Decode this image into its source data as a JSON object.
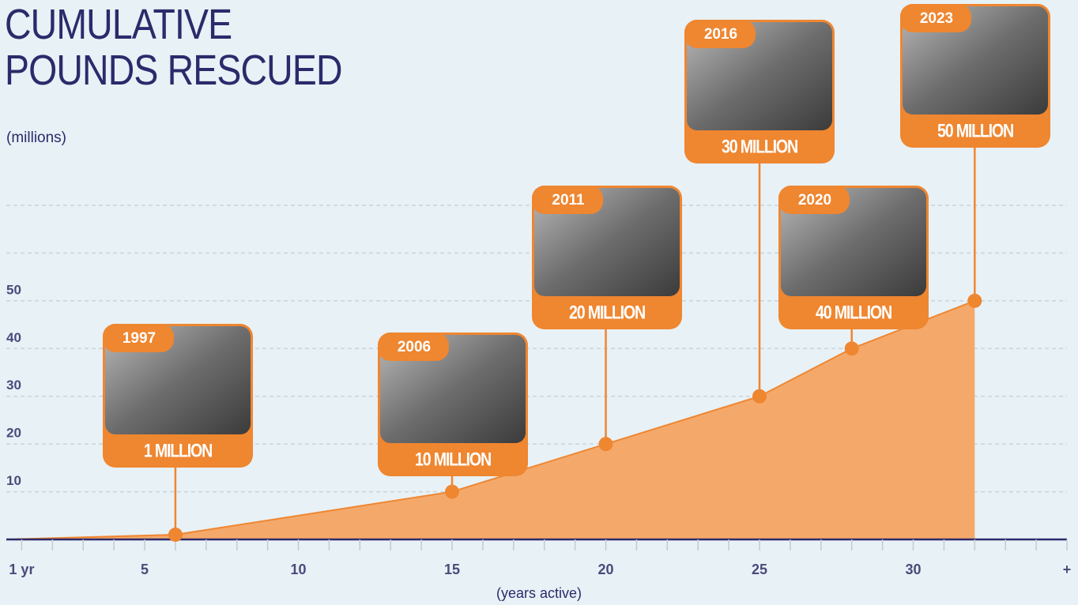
{
  "chart_data": {
    "type": "area",
    "title": "CUMULATIVE POUNDS RESCUED",
    "subtitle": "(millions)",
    "xlabel": "(years active)",
    "x": [
      6,
      15,
      20,
      25,
      28,
      32
    ],
    "values": [
      1,
      10,
      20,
      30,
      40,
      50
    ],
    "value_labels": [
      "1 MILLION",
      "10 MILLION",
      "20 MILLION",
      "30 MILLION",
      "40 MILLION",
      "50 MILLION"
    ],
    "milestone_years": [
      "1997",
      "2006",
      "2011",
      "2016",
      "2020",
      "2023"
    ],
    "color": "#ef8630",
    "fill_color": "#f4a96b",
    "xlim": [
      0.5,
      35
    ],
    "xticks": [
      {
        "value": 1,
        "label": "1 yr"
      },
      5,
      10,
      15,
      20,
      25,
      30,
      {
        "value": 35,
        "label": "+"
      }
    ],
    "xminorticks": [
      2,
      3,
      4,
      6,
      7,
      8,
      9,
      11,
      12,
      13,
      14,
      16,
      17,
      18,
      19,
      21,
      22,
      23,
      24,
      26,
      27,
      28,
      29,
      31,
      32,
      33,
      34
    ],
    "ylim": [
      0,
      70
    ],
    "yticks": [
      10,
      20,
      30,
      40,
      50
    ],
    "ygrid": [
      10,
      20,
      30,
      40,
      50,
      60,
      70
    ]
  }
}
